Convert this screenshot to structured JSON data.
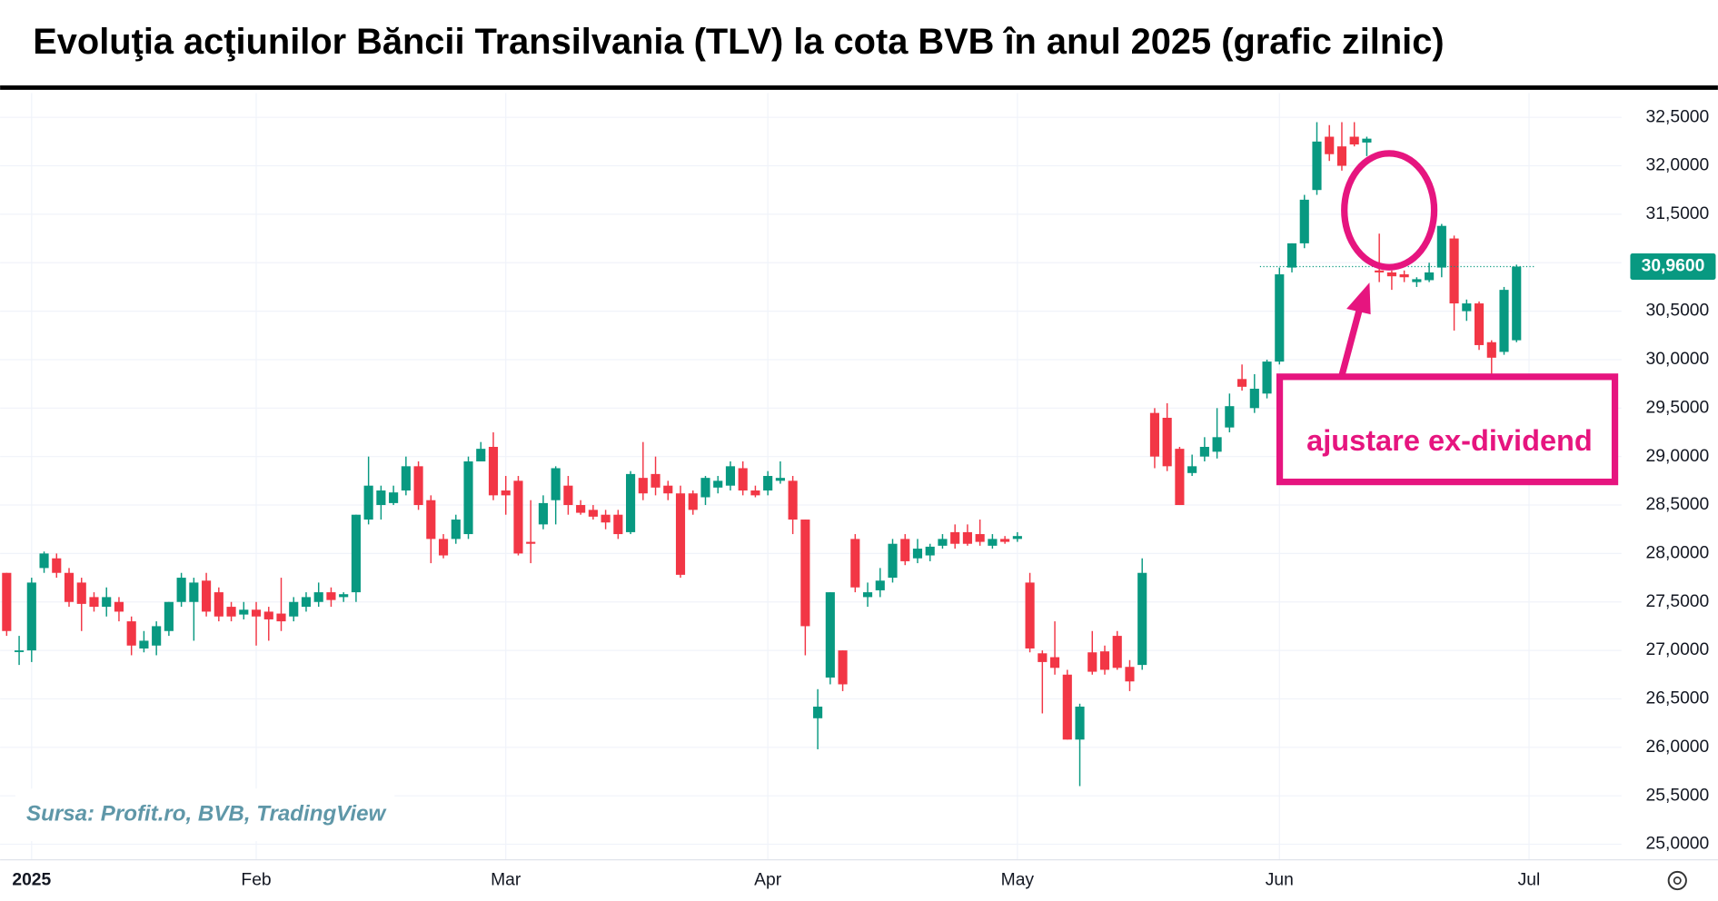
{
  "chart_data": {
    "type": "candlestick",
    "title": "Evoluţia acţiunilor Băncii Transilvania (TLV) la cota BVB în anul 2025 (grafic zilnic)",
    "annotation": "ajustare ex-dividend",
    "source": "Sursa: Profit.ro, BVB, TradingView",
    "last_label": "30,9600",
    "up_color": "#089981",
    "down_color": "#f23645",
    "grid": true,
    "ylim": [
      24.84,
      32.75
    ],
    "yticks": [
      {
        "value": 25,
        "label": "25,0000"
      },
      {
        "value": 25.5,
        "label": "25,5000"
      },
      {
        "value": 26,
        "label": "26,0000"
      },
      {
        "value": 26.5,
        "label": "26,5000"
      },
      {
        "value": 27,
        "label": "27,0000"
      },
      {
        "value": 27.5,
        "label": "27,5000"
      },
      {
        "value": 28,
        "label": "28,0000"
      },
      {
        "value": 28.5,
        "label": "28,5000"
      },
      {
        "value": 29,
        "label": "29,0000"
      },
      {
        "value": 29.5,
        "label": "29,5000"
      },
      {
        "value": 30,
        "label": "30,0000"
      },
      {
        "value": 30.5,
        "label": "30,5000"
      },
      {
        "value": 31,
        "label": "31,0000"
      },
      {
        "value": 31.5,
        "label": "31,5000"
      },
      {
        "value": 32,
        "label": "32,0000"
      },
      {
        "value": 32.5,
        "label": "32,5000"
      }
    ],
    "categories": [
      null,
      null,
      "2025",
      null,
      null,
      null,
      null,
      null,
      null,
      null,
      null,
      null,
      null,
      null,
      null,
      null,
      null,
      null,
      null,
      null,
      "Feb",
      null,
      null,
      null,
      null,
      null,
      null,
      null,
      null,
      null,
      null,
      null,
      null,
      null,
      null,
      null,
      null,
      null,
      null,
      null,
      "Mar",
      null,
      null,
      null,
      null,
      null,
      null,
      null,
      null,
      null,
      null,
      null,
      null,
      null,
      null,
      null,
      null,
      null,
      null,
      null,
      null,
      "Apr",
      null,
      null,
      null,
      null,
      null,
      null,
      null,
      null,
      null,
      null,
      null,
      null,
      null,
      null,
      null,
      null,
      null,
      null,
      null,
      "May",
      null,
      null,
      null,
      null,
      null,
      null,
      null,
      null,
      null,
      null,
      null,
      null,
      null,
      null,
      null,
      null,
      null,
      null,
      null,
      null,
      "Jun",
      null,
      null,
      null,
      null,
      null,
      null,
      null,
      null,
      null,
      null,
      null,
      null,
      null,
      null,
      null,
      null,
      null,
      null,
      null,
      "Jul"
    ],
    "open": [
      27.8,
      27.0,
      27.0,
      27.85,
      27.95,
      27.8,
      27.7,
      27.55,
      27.45,
      27.5,
      27.3,
      27.02,
      27.05,
      27.2,
      27.5,
      27.5,
      27.72,
      27.6,
      27.45,
      27.37,
      27.42,
      27.4,
      27.38,
      27.35,
      27.45,
      27.5,
      27.6,
      27.55,
      27.6,
      28.35,
      28.5,
      28.52,
      28.65,
      28.9,
      28.55,
      28.15,
      28.15,
      28.2,
      28.95,
      29.1,
      28.65,
      28.75,
      28.12,
      28.3,
      28.55,
      28.7,
      28.5,
      28.45,
      28.4,
      28.4,
      28.22,
      28.78,
      28.82,
      28.7,
      28.62,
      28.62,
      28.58,
      28.68,
      28.7,
      28.88,
      28.65,
      28.65,
      28.75,
      28.75,
      28.35,
      26.3,
      26.72,
      27.0,
      28.15,
      27.55,
      27.62,
      27.75,
      28.15,
      27.95,
      27.98,
      28.08,
      28.22,
      28.22,
      28.2,
      28.08,
      28.15,
      28.15,
      27.7,
      26.97,
      26.93,
      26.75,
      26.08,
      26.98,
      26.99,
      27.15,
      26.83,
      26.85,
      29.45,
      29.4,
      29.08,
      28.83,
      29.0,
      29.05,
      29.3,
      29.8,
      29.5,
      29.65,
      29.98,
      30.95,
      31.2,
      31.75,
      32.3,
      32.2,
      32.3,
      32.24,
      30.92,
      30.9,
      30.88,
      30.8,
      30.82,
      30.95,
      31.25,
      30.5,
      30.58,
      30.18,
      30.08,
      30.2,
      null
    ],
    "close": [
      27.2,
      27.0,
      27.7,
      28.0,
      27.8,
      27.5,
      27.48,
      27.45,
      27.55,
      27.4,
      27.05,
      27.1,
      27.25,
      27.5,
      27.75,
      27.7,
      27.4,
      27.35,
      27.35,
      27.42,
      27.35,
      27.32,
      27.3,
      27.5,
      27.55,
      27.6,
      27.52,
      27.58,
      28.4,
      28.7,
      28.65,
      28.63,
      28.9,
      28.5,
      28.15,
      27.98,
      28.35,
      28.95,
      29.08,
      28.6,
      28.6,
      28.0,
      28.1,
      28.52,
      28.88,
      28.5,
      28.42,
      28.38,
      28.32,
      28.2,
      28.82,
      28.62,
      28.68,
      28.62,
      27.78,
      28.45,
      28.78,
      28.75,
      28.9,
      28.65,
      28.6,
      28.8,
      28.78,
      28.35,
      27.25,
      26.42,
      27.6,
      26.65,
      27.65,
      27.6,
      27.72,
      28.1,
      27.92,
      28.05,
      28.07,
      28.15,
      28.1,
      28.1,
      28.12,
      28.15,
      28.12,
      28.18,
      27.02,
      26.88,
      26.82,
      26.08,
      26.42,
      26.78,
      26.8,
      26.82,
      26.68,
      27.8,
      29.0,
      28.9,
      28.5,
      28.9,
      29.1,
      29.2,
      29.52,
      29.72,
      29.7,
      29.98,
      30.88,
      31.2,
      31.65,
      32.25,
      32.12,
      32.0,
      32.22,
      32.28,
      30.9,
      30.86,
      30.85,
      30.83,
      30.9,
      31.38,
      30.58,
      30.58,
      30.15,
      30.02,
      30.72,
      30.96,
      null
    ],
    "high": [
      27.8,
      27.15,
      27.75,
      28.02,
      28.0,
      27.85,
      27.75,
      27.6,
      27.65,
      27.55,
      27.35,
      27.2,
      27.3,
      27.5,
      27.8,
      27.75,
      27.8,
      27.65,
      27.5,
      27.5,
      27.5,
      27.45,
      27.75,
      27.55,
      27.6,
      27.7,
      27.65,
      27.6,
      28.4,
      29.0,
      28.7,
      28.7,
      29.0,
      28.95,
      28.6,
      28.2,
      28.4,
      29.0,
      29.15,
      29.25,
      28.8,
      28.8,
      28.55,
      28.6,
      28.9,
      28.8,
      28.55,
      28.5,
      28.45,
      28.45,
      28.85,
      29.15,
      29.0,
      28.75,
      28.7,
      28.65,
      28.8,
      28.8,
      28.95,
      28.95,
      28.7,
      28.85,
      28.95,
      28.8,
      28.35,
      26.6,
      27.6,
      27.0,
      28.2,
      27.7,
      27.85,
      28.15,
      28.2,
      28.15,
      28.1,
      28.2,
      28.3,
      28.3,
      28.35,
      28.2,
      28.18,
      28.22,
      27.8,
      27.0,
      27.3,
      26.8,
      26.45,
      27.2,
      27.05,
      27.2,
      26.9,
      27.95,
      29.5,
      29.55,
      29.1,
      29.02,
      29.2,
      29.5,
      29.65,
      29.95,
      29.85,
      30.0,
      30.95,
      31.2,
      31.7,
      32.45,
      32.42,
      32.45,
      32.45,
      32.3,
      31.3,
      30.92,
      30.92,
      30.85,
      31.0,
      31.4,
      31.28,
      30.62,
      30.6,
      30.2,
      30.75,
      30.98,
      null
    ],
    "low": [
      27.15,
      26.85,
      26.88,
      27.8,
      27.75,
      27.45,
      27.2,
      27.4,
      27.35,
      27.3,
      26.95,
      26.98,
      26.95,
      27.15,
      27.45,
      27.1,
      27.35,
      27.3,
      27.3,
      27.32,
      27.05,
      27.1,
      27.2,
      27.3,
      27.4,
      27.45,
      27.45,
      27.5,
      27.5,
      28.3,
      28.35,
      28.5,
      28.6,
      28.45,
      27.9,
      27.95,
      28.1,
      28.15,
      28.95,
      28.55,
      28.4,
      27.98,
      27.9,
      28.25,
      28.3,
      28.4,
      28.4,
      28.35,
      28.25,
      28.15,
      28.2,
      28.55,
      28.6,
      28.55,
      27.75,
      28.4,
      28.5,
      28.62,
      28.65,
      28.6,
      28.58,
      28.6,
      28.72,
      28.2,
      26.95,
      25.98,
      26.65,
      26.58,
      27.6,
      27.45,
      27.55,
      27.7,
      27.88,
      27.9,
      27.92,
      28.05,
      28.05,
      28.08,
      28.08,
      28.05,
      28.1,
      28.12,
      26.98,
      26.35,
      26.75,
      26.08,
      25.6,
      26.75,
      26.75,
      26.8,
      26.58,
      26.8,
      28.88,
      28.85,
      28.5,
      28.8,
      28.95,
      28.98,
      29.25,
      29.68,
      29.45,
      29.6,
      29.95,
      30.9,
      31.15,
      31.7,
      32.05,
      31.95,
      32.2,
      32.1,
      30.8,
      30.72,
      30.8,
      30.75,
      30.8,
      30.85,
      30.3,
      30.4,
      30.1,
      29.85,
      30.05,
      30.18,
      null
    ]
  }
}
